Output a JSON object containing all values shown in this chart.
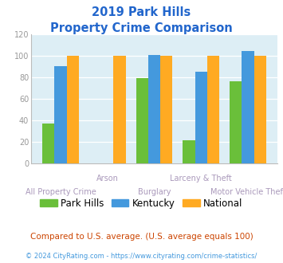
{
  "title_line1": "2019 Park Hills",
  "title_line2": "Property Crime Comparison",
  "categories": [
    "All Property Crime",
    "Arson",
    "Burglary",
    "Larceny & Theft",
    "Motor Vehicle Theft"
  ],
  "park_hills": [
    37,
    0,
    79,
    21,
    76
  ],
  "kentucky": [
    90,
    0,
    101,
    85,
    104
  ],
  "national": [
    100,
    100,
    100,
    100,
    100
  ],
  "bar_colors": {
    "park_hills": "#6abf3a",
    "kentucky": "#4499dd",
    "national": "#ffaa22"
  },
  "ylim": [
    0,
    120
  ],
  "yticks": [
    0,
    20,
    40,
    60,
    80,
    100,
    120
  ],
  "title_color": "#2266cc",
  "label_color": "#aa99bb",
  "legend_labels": [
    "Park Hills",
    "Kentucky",
    "National"
  ],
  "footnote1": "Compared to U.S. average. (U.S. average equals 100)",
  "footnote2": "© 2024 CityRating.com - https://www.cityrating.com/crime-statistics/",
  "footnote1_color": "#cc4400",
  "footnote2_color": "#4499dd",
  "plot_bg_color": "#ddeef5",
  "grid_color": "#ffffff",
  "ytick_color": "#999999"
}
